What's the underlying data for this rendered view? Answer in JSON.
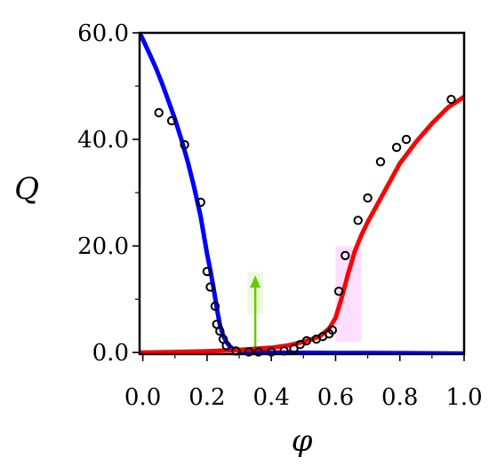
{
  "chart_data": {
    "type": "scatter",
    "title": "",
    "xlabel": "φ",
    "ylabel": "Q",
    "xlim": [
      -0.01,
      1.0
    ],
    "ylim": [
      -0.3,
      60
    ],
    "xticks": [
      {
        "value": 0.0,
        "label": "0.0"
      },
      {
        "value": 0.2,
        "label": "0.2"
      },
      {
        "value": 0.4,
        "label": "0.4"
      },
      {
        "value": 0.6,
        "label": "0.6"
      },
      {
        "value": 0.8,
        "label": "0.8"
      },
      {
        "value": 1.0,
        "label": "1.0"
      }
    ],
    "xminorticks": [
      0.1,
      0.3,
      0.5,
      0.7,
      0.9
    ],
    "yticks": [
      {
        "value": 0.0,
        "label": "0.0"
      },
      {
        "value": 20.0,
        "label": "20.0"
      },
      {
        "value": 40.0,
        "label": "40.0"
      },
      {
        "value": 60.0,
        "label": "60.0"
      }
    ],
    "yminorticks": [
      10,
      30,
      50
    ],
    "grid": false,
    "series": [
      {
        "kind": "line",
        "color": "#0000ff",
        "x": [
          -0.01,
          0.0,
          0.02,
          0.04,
          0.06,
          0.08,
          0.1,
          0.12,
          0.14,
          0.16,
          0.18,
          0.2,
          0.21,
          0.22,
          0.23,
          0.24,
          0.25,
          0.26,
          0.27,
          0.28,
          0.3,
          0.32,
          0.35,
          0.4,
          0.5,
          0.6,
          0.7,
          0.8,
          0.9,
          1.0
        ],
        "y": [
          60.0,
          58.8,
          56.2,
          53.5,
          50.5,
          47.2,
          43.8,
          40.0,
          35.8,
          31.0,
          25.5,
          18.5,
          15.5,
          12.2,
          8.5,
          5.2,
          3.2,
          2.0,
          1.2,
          0.7,
          0.3,
          0.15,
          0.05,
          0.0,
          -0.05,
          -0.08,
          -0.1,
          -0.12,
          -0.15,
          -0.2
        ]
      },
      {
        "kind": "line",
        "color": "#ff0000",
        "x": [
          -0.01,
          0.1,
          0.2,
          0.3,
          0.35,
          0.4,
          0.45,
          0.5,
          0.55,
          0.58,
          0.6,
          0.62,
          0.64,
          0.66,
          0.68,
          0.7,
          0.75,
          0.8,
          0.85,
          0.9,
          0.95,
          1.0
        ],
        "y": [
          0.0,
          0.1,
          0.25,
          0.5,
          0.7,
          0.9,
          1.3,
          2.0,
          3.0,
          4.5,
          6.5,
          10.5,
          15.0,
          19.0,
          22.0,
          24.5,
          30.0,
          35.5,
          39.5,
          43.0,
          46.0,
          48.0
        ]
      },
      {
        "kind": "scatter",
        "marker": "open-circle",
        "color": "#000000",
        "x": [
          0.05,
          0.09,
          0.13,
          0.18,
          0.2,
          0.21,
          0.225,
          0.23,
          0.24,
          0.25,
          0.26,
          0.29,
          0.33,
          0.36,
          0.4,
          0.44,
          0.47,
          0.49,
          0.51,
          0.54,
          0.56,
          0.58,
          0.59,
          0.61,
          0.63,
          0.67,
          0.7,
          0.74,
          0.79,
          0.82,
          0.96
        ],
        "y": [
          45.0,
          43.5,
          39.0,
          28.2,
          15.2,
          12.3,
          8.7,
          5.3,
          4.0,
          2.5,
          1.3,
          0.3,
          0.1,
          0.1,
          0.1,
          0.3,
          0.7,
          1.5,
          2.2,
          2.5,
          3.0,
          3.5,
          4.2,
          11.5,
          18.2,
          24.8,
          29.0,
          35.8,
          38.5,
          40.0,
          47.5
        ]
      }
    ],
    "annotations": [
      {
        "kind": "arrow",
        "color": "#66cc00",
        "x": 0.35,
        "y_from": 0.0,
        "y_to": 14.5
      },
      {
        "kind": "highlight-band",
        "color": "#ff00ff",
        "x_from": 0.6,
        "x_to": 0.68,
        "y_from": 2.0,
        "y_to": 20.0
      }
    ]
  }
}
